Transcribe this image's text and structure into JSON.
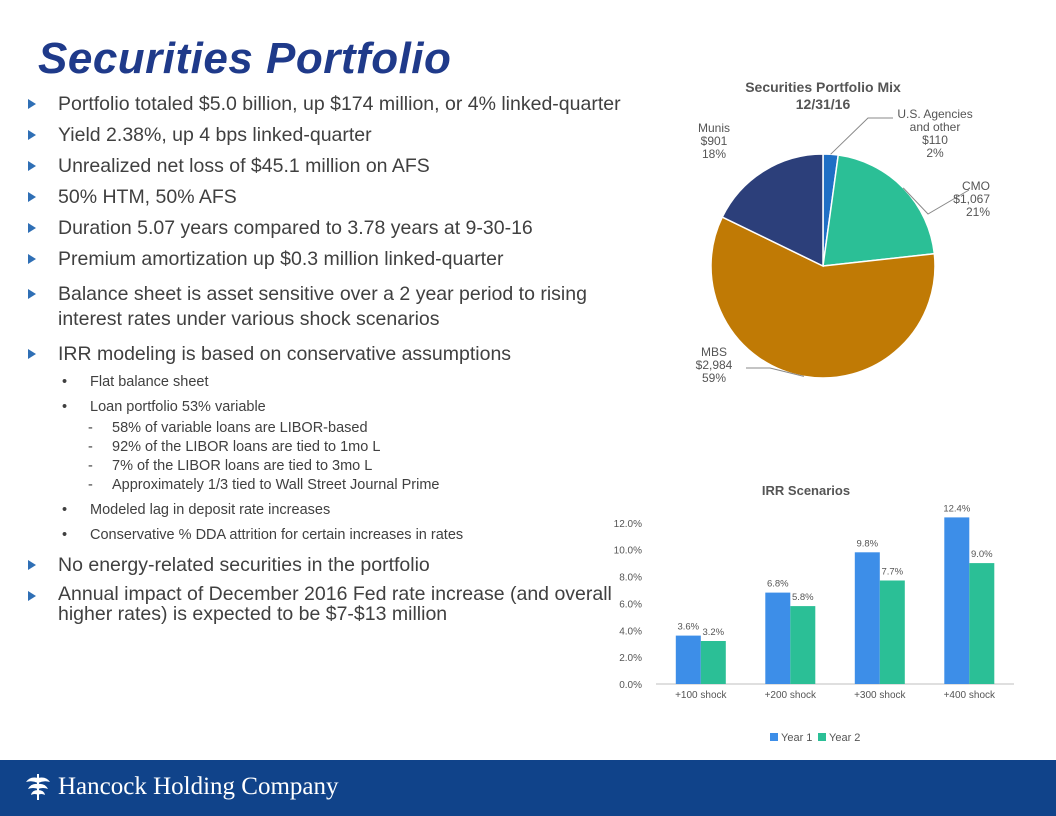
{
  "slide": {
    "title": "Securities Portfolio",
    "bullets": [
      {
        "level": 1,
        "text": "Portfolio totaled $5.0 billion, up $174 million, or 4% linked-quarter"
      },
      {
        "level": 1,
        "text": "Yield 2.38%, up 4 bps linked-quarter"
      },
      {
        "level": 1,
        "text": "Unrealized net loss of $45.1 million on AFS"
      },
      {
        "level": 1,
        "text": "50% HTM, 50% AFS"
      },
      {
        "level": 1,
        "text": "Duration 5.07 years compared to 3.78 years at 9-30-16"
      },
      {
        "level": 1,
        "text": "Premium amortization up $0.3 million linked-quarter"
      },
      {
        "level": 1,
        "text": "Balance sheet is asset sensitive over a 2 year period to rising interest rates under various shock scenarios"
      },
      {
        "level": 1,
        "text": "IRR modeling is based on conservative assumptions"
      },
      {
        "level": 2,
        "text": "Flat balance sheet"
      },
      {
        "level": 2,
        "text": "Loan portfolio 53% variable"
      },
      {
        "level": 3,
        "text": "58% of variable loans are LIBOR-based"
      },
      {
        "level": 3,
        "text": "92% of the LIBOR loans are tied to 1mo L"
      },
      {
        "level": 3,
        "text": "7% of the LIBOR loans are tied to 3mo L"
      },
      {
        "level": 3,
        "text": "Approximately 1/3 tied to Wall Street Journal Prime"
      },
      {
        "level": 2,
        "text": "Modeled lag in deposit rate increases"
      },
      {
        "level": 2,
        "text": "Conservative % DDA attrition for certain increases in rates"
      },
      {
        "level": 1,
        "text": "No energy-related securities in the portfolio"
      },
      {
        "level": 1,
        "text": "Annual impact of December 2016 Fed rate increase (and overall higher rates) is expected to be $7-$13 million"
      }
    ]
  },
  "chart_data": [
    {
      "type": "pie",
      "title": "Securities Portfolio Mix",
      "subtitle": "12/31/16",
      "slices": [
        {
          "label": "U.S. Agencies and other",
          "value_label": "$110",
          "percent_label": "2%",
          "value": 110,
          "color": "#1f6fc5"
        },
        {
          "label": "CMO",
          "value_label": "$1,067",
          "percent_label": "21%",
          "value": 1067,
          "color": "#2bbf96"
        },
        {
          "label": "MBS",
          "value_label": "$2,984",
          "percent_label": "59%",
          "value": 2984,
          "color": "#c07a05"
        },
        {
          "label": "Munis",
          "value_label": "$901",
          "percent_label": "18%",
          "value": 901,
          "color": "#2c3f7a"
        }
      ]
    },
    {
      "type": "bar",
      "title": "IRR Scenarios",
      "categories": [
        "+100 shock",
        "+200 shock",
        "+300 shock",
        "+400 shock"
      ],
      "series": [
        {
          "name": "Year 1",
          "values": [
            3.6,
            6.8,
            9.8,
            12.4
          ],
          "labels": [
            "3.6%",
            "6.8%",
            "9.8%",
            "12.4%"
          ],
          "color": "#3d8ee8"
        },
        {
          "name": "Year 2",
          "values": [
            3.2,
            5.8,
            7.7,
            9.0
          ],
          "labels": [
            "3.2%",
            "5.8%",
            "7.7%",
            "9.0%"
          ],
          "color": "#2bbf96"
        }
      ],
      "ylim": [
        0,
        12
      ],
      "yticks": [
        0,
        2,
        4,
        6,
        8,
        10,
        12
      ],
      "ytick_labels": [
        "0.0%",
        "2.0%",
        "4.0%",
        "6.0%",
        "8.0%",
        "10.0%",
        "12.0%"
      ],
      "grid": false,
      "legend": "bottom"
    }
  ],
  "footer": {
    "company": "Hancock Holding Company"
  }
}
